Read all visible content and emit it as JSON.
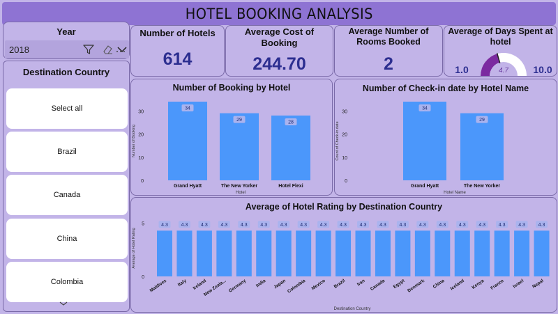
{
  "header": {
    "title": "HOTEL BOOKING ANALYSIS"
  },
  "year_slicer": {
    "label": "Year",
    "value": "2018"
  },
  "destination_slicer": {
    "label": "Destination Country",
    "items": [
      "Select all",
      "Brazil",
      "Canada",
      "China",
      "Colombia"
    ]
  },
  "kpis": {
    "hotels": {
      "label": "Number of Hotels",
      "value": "614"
    },
    "avg_cost": {
      "label": "Average Cost of Booking",
      "value": "244.70"
    },
    "avg_rooms": {
      "label": "Average Number of Rooms Booked",
      "value": "2"
    },
    "avg_days": {
      "label": "Average of Days Spent at hotel",
      "value": "4.7",
      "min": "1.0",
      "max": "10.0",
      "numeric_value": 4.7,
      "numeric_min": 1,
      "numeric_max": 10
    }
  },
  "colors": {
    "bar": "#4b97fb",
    "gauge_fill": "#7b2aa0",
    "gauge_track": "#ffffff",
    "kpi_value": "#2c2e90",
    "header": "#8e73d3",
    "canvas": "#c2b4e8"
  },
  "chart_data": [
    {
      "type": "bar",
      "title": "Number of Booking by Hotel",
      "xlabel": "Hotel",
      "ylabel": "Number of Booking",
      "categories": [
        "Grand Hyatt",
        "The New Yorker",
        "Hotel Flexi"
      ],
      "values": [
        34,
        29,
        28
      ],
      "data_labels": [
        "34",
        "29",
        "28"
      ],
      "yticks": [
        "0",
        "10",
        "20",
        "30"
      ],
      "ylim": [
        0,
        34
      ]
    },
    {
      "type": "bar",
      "title": "Number of Check-in date by Hotel Name",
      "xlabel": "Hotel Name",
      "ylabel": "Count of Check-in date",
      "categories": [
        "Grand Hyatt",
        "The New Yorker"
      ],
      "values": [
        34,
        29
      ],
      "data_labels": [
        "34",
        "29"
      ],
      "yticks": [
        "0",
        "10",
        "20",
        "30"
      ],
      "ylim": [
        0,
        34
      ]
    },
    {
      "type": "bar",
      "title": "Average of Hotel Rating by Destination Country",
      "xlabel": "Destination Country",
      "ylabel": "Average of Hotel Rating",
      "categories": [
        "Maldives",
        "Italy",
        "Ireland",
        "New Zeala...",
        "Germany",
        "India",
        "Japan",
        "Colombia",
        "Mexico",
        "Brazil",
        "Iran",
        "Canada",
        "Egypt",
        "Denmark",
        "China",
        "Iceland",
        "Kenya",
        "France",
        "Israel",
        "Nepal"
      ],
      "values": [
        4.3,
        4.3,
        4.3,
        4.3,
        4.3,
        4.3,
        4.3,
        4.3,
        4.3,
        4.3,
        4.3,
        4.3,
        4.3,
        4.3,
        4.3,
        4.3,
        4.3,
        4.3,
        4.3,
        4.3
      ],
      "data_labels": [
        "4.3",
        "4.3",
        "4.3",
        "4.3",
        "4.3",
        "4.3",
        "4.3",
        "4.3",
        "4.3",
        "4.3",
        "4.3",
        "4.3",
        "4.3",
        "4.3",
        "4.3",
        "4.3",
        "4.3",
        "4.3",
        "4.3",
        "4.3"
      ],
      "yticks": [
        "0",
        "5"
      ],
      "ylim": [
        0,
        5.3
      ]
    }
  ]
}
